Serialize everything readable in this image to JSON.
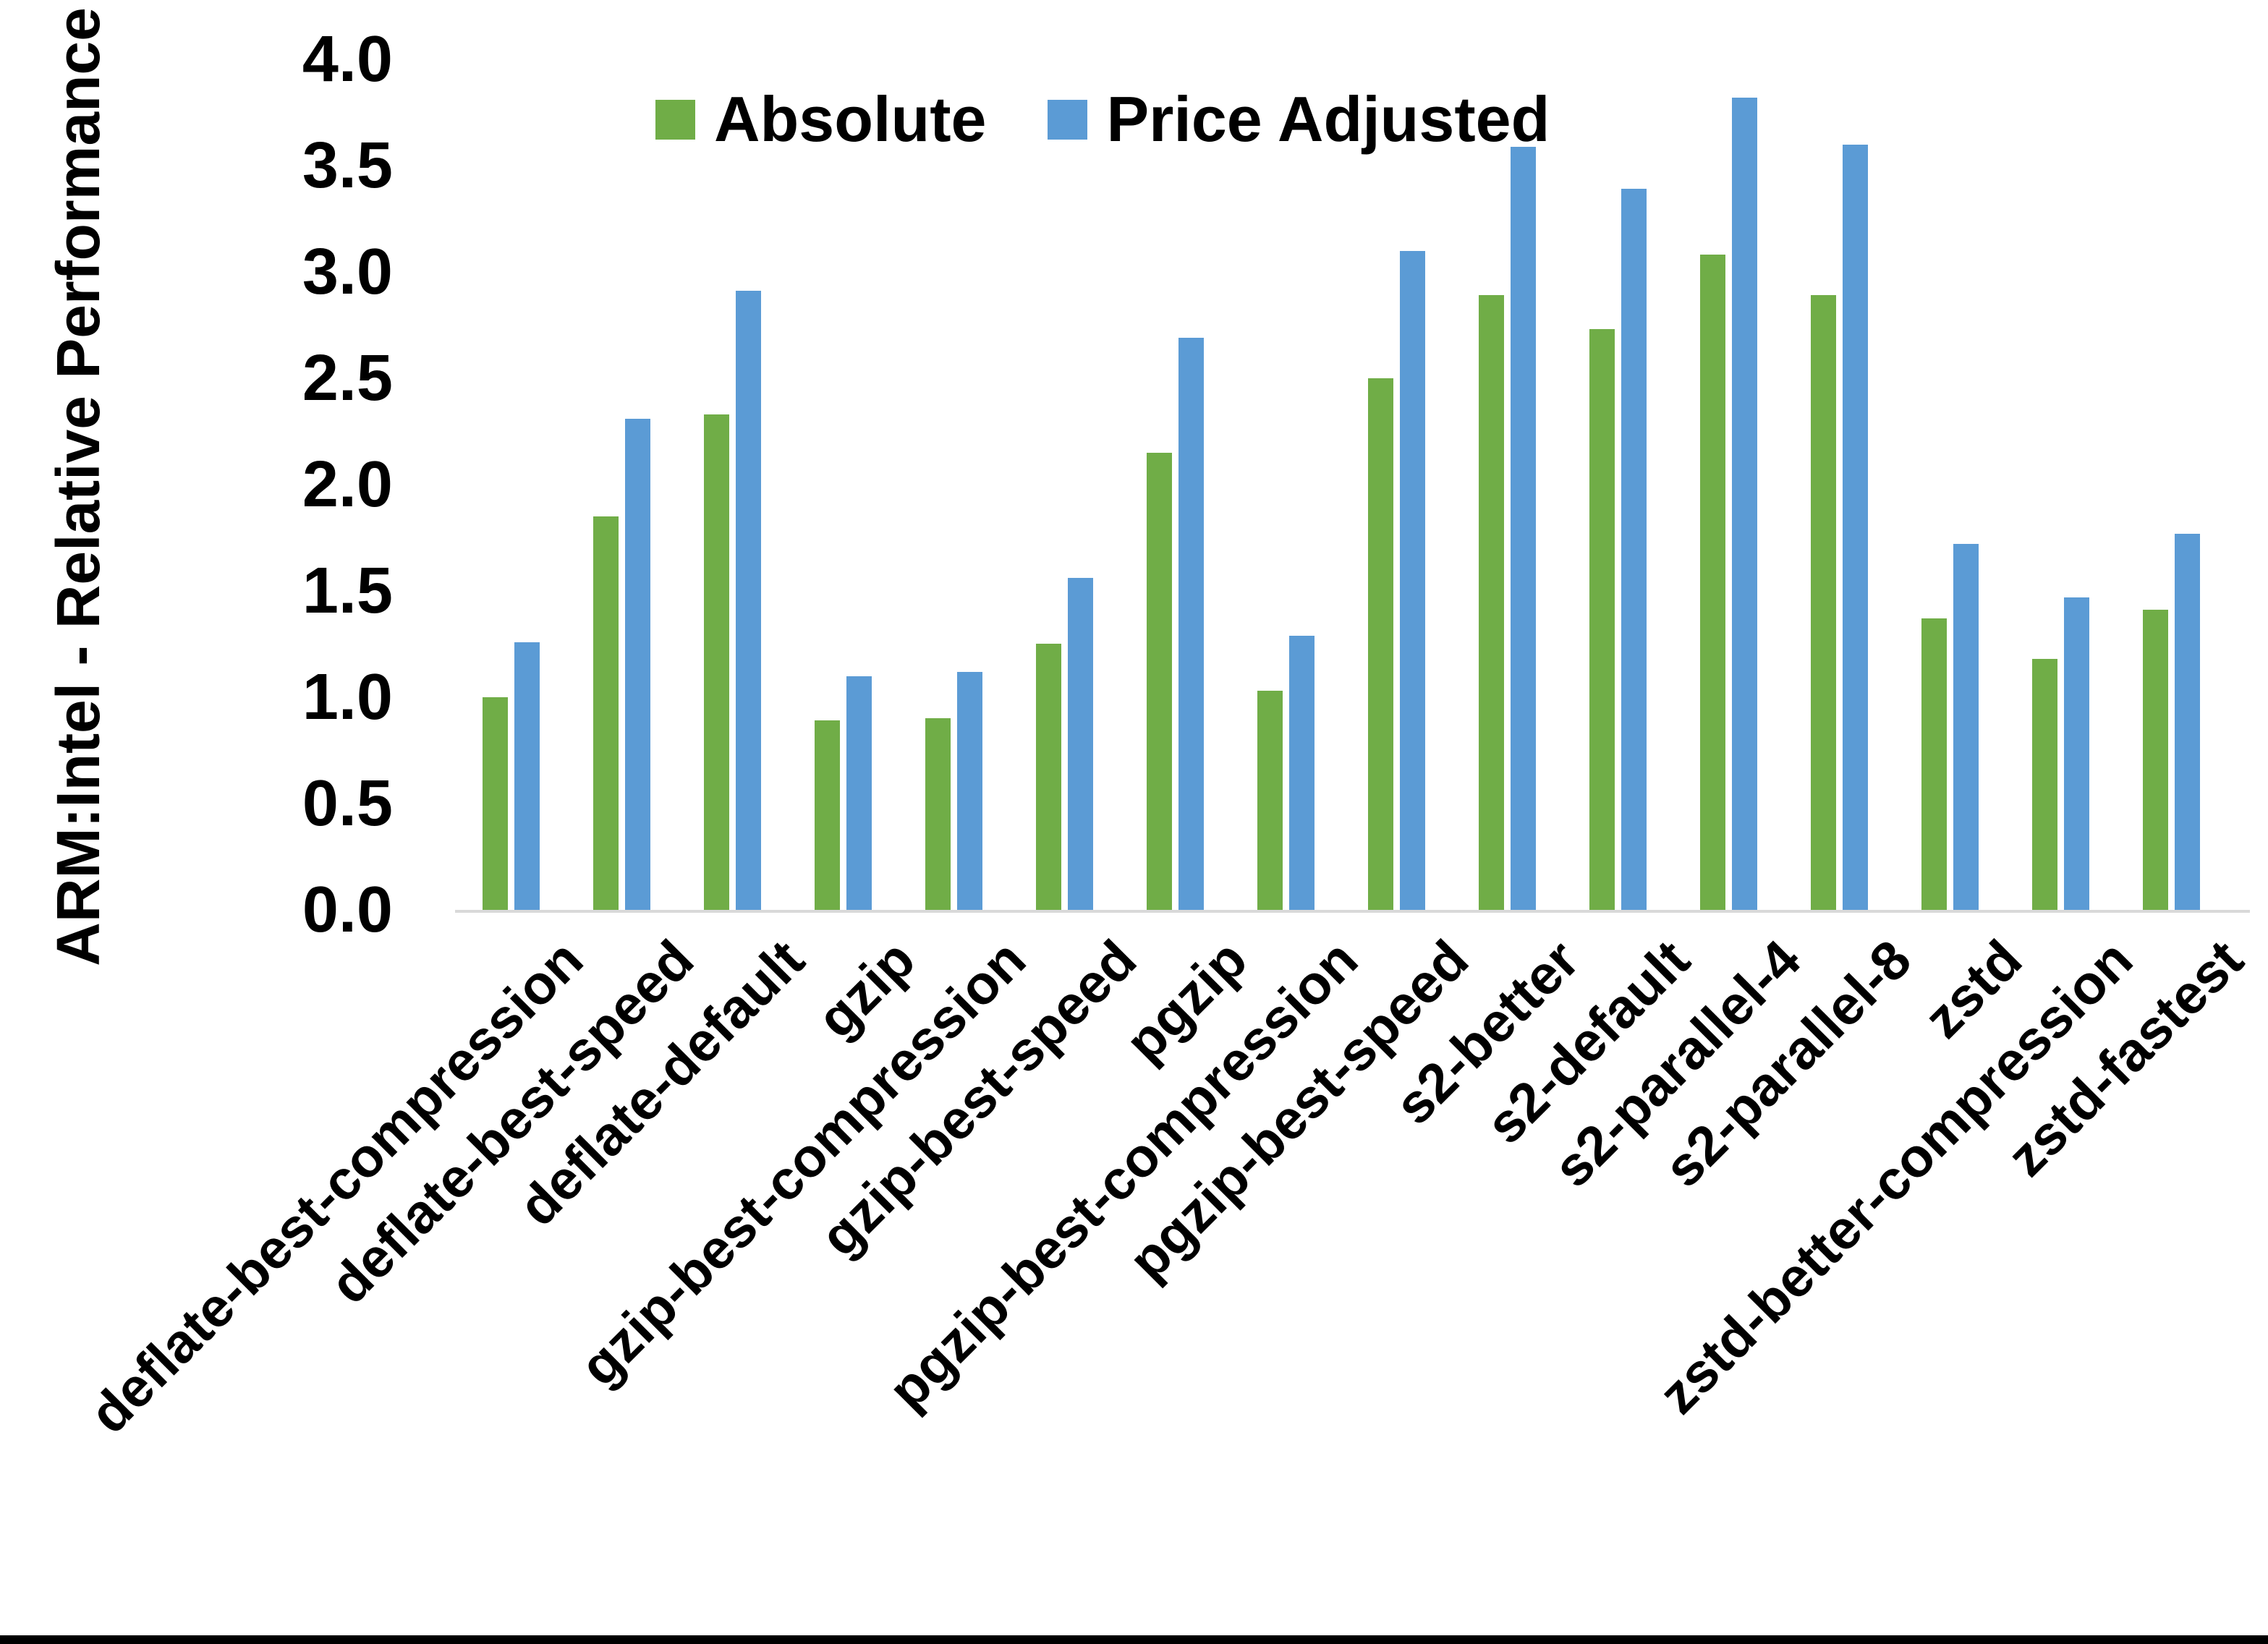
{
  "chart_data": {
    "type": "bar",
    "title": "",
    "xlabel": "",
    "ylabel": "ARM:Intel - Relative Performance",
    "ylim": [
      0.0,
      4.0
    ],
    "ytick_step": 0.5,
    "ytick_labels": [
      "0.0",
      "0.5",
      "1.0",
      "1.5",
      "2.0",
      "2.5",
      "3.0",
      "3.5",
      "4.0"
    ],
    "grid": false,
    "legend_position": "top-center",
    "axis_line_color": "#D9D9D9",
    "text_color": "#000000",
    "categories": [
      "deflate-best-compression",
      "deflate-best-speed",
      "deflate-default",
      "gzip",
      "gzip-best-compression",
      "gzip-best-speed",
      "pgzip",
      "pgzip-best-compression",
      "pgzip-best-speed",
      "s2-better",
      "s2-default",
      "s2-parallel-4",
      "s2-parallel-8",
      "zstd",
      "zstd-better-compression",
      "zstd-fastest"
    ],
    "series": [
      {
        "name": "Absolute",
        "color": "#70AD47",
        "values": [
          1.0,
          1.85,
          2.33,
          0.89,
          0.9,
          1.25,
          2.15,
          1.03,
          2.5,
          2.89,
          2.73,
          3.08,
          2.89,
          1.37,
          1.18,
          1.41
        ]
      },
      {
        "name": "Price Adjusted",
        "color": "#5B9BD5",
        "values": [
          1.26,
          2.31,
          2.91,
          1.1,
          1.12,
          1.56,
          2.69,
          1.29,
          3.1,
          3.59,
          3.39,
          3.82,
          3.6,
          1.72,
          1.47,
          1.77
        ]
      }
    ]
  }
}
